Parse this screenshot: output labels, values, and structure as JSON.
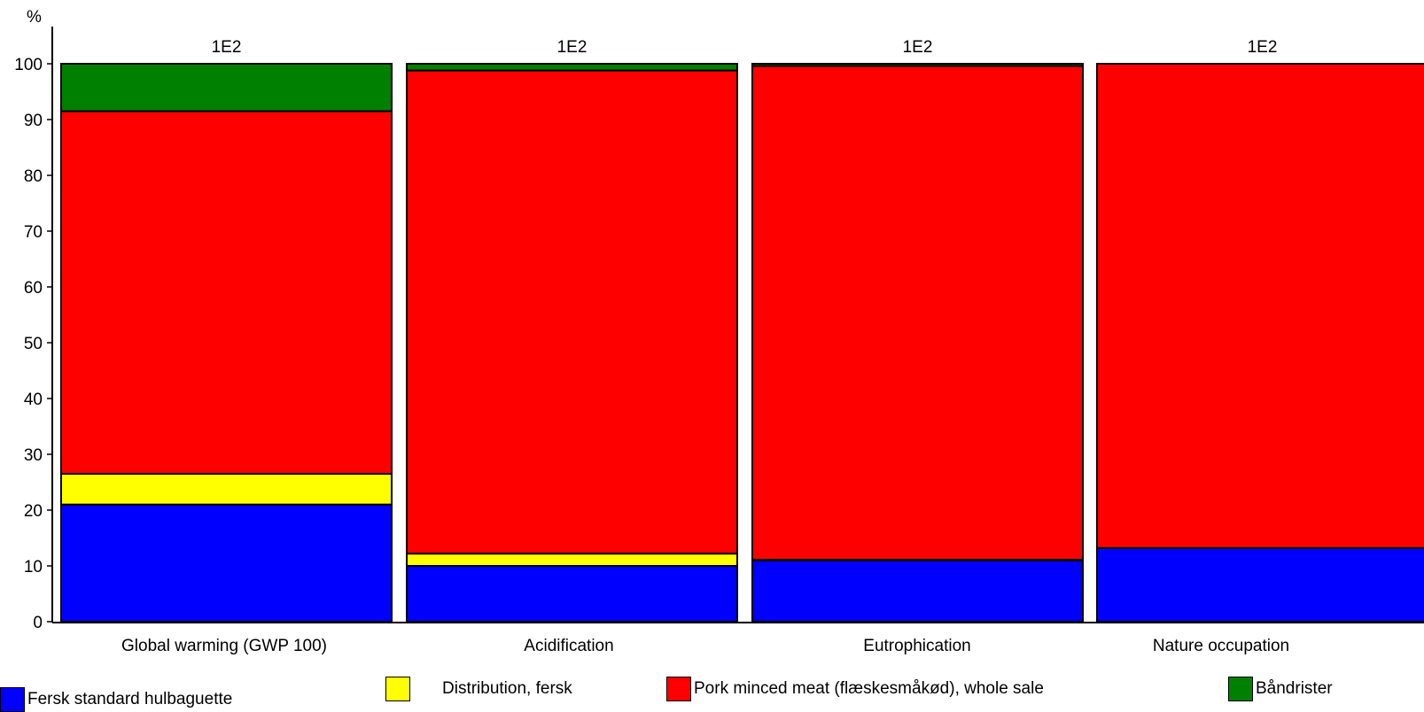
{
  "chart_data": {
    "type": "bar",
    "stacked": true,
    "unit_label": "%",
    "categories": [
      "Global warming (GWP 100)",
      "Acidification",
      "Eutrophication",
      "Nature occupation"
    ],
    "top_labels": [
      "1E2",
      "1E2",
      "1E2",
      "1E2"
    ],
    "series": [
      {
        "name": "Fersk standard hulbaguette",
        "color": "#0000ff",
        "values": [
          21.0,
          10.0,
          11.0,
          13.2
        ]
      },
      {
        "name": "Distribution, fersk",
        "color": "#ffff00",
        "values": [
          5.5,
          2.2,
          0.1,
          0.0
        ]
      },
      {
        "name": "Pork minced meat (flæskesmåkød), whole sale",
        "color": "#ff0000",
        "values": [
          65.0,
          86.6,
          88.5,
          86.8
        ]
      },
      {
        "name": "Båndrister",
        "color": "#008000",
        "values": [
          8.5,
          1.2,
          0.4,
          0.0
        ]
      }
    ],
    "ylim": [
      0,
      100
    ],
    "yticks": [
      "0",
      "10",
      "20",
      "30",
      "40",
      "50",
      "60",
      "70",
      "80",
      "90",
      "100"
    ],
    "grid": false,
    "legend_position": "bottom"
  }
}
